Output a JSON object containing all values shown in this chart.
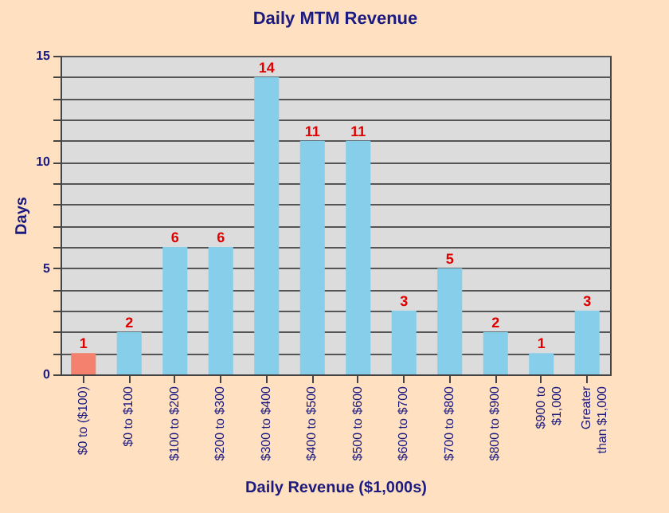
{
  "chart_data": {
    "type": "bar",
    "title": "Daily MTM Revenue",
    "xlabel": "Daily Revenue ($1,000s)",
    "ylabel": "Days",
    "categories": [
      "$0 to ($100)",
      "$0 to $100",
      "$100 to $200",
      "$200 to $300",
      "$300 to $400",
      "$400 to $500",
      "$500 to $600",
      "$600 to $700",
      "$700 to $800",
      "$800 to $900",
      "$900 to $1,000",
      "Greater than $1,000"
    ],
    "values": [
      1,
      2,
      6,
      6,
      14,
      11,
      11,
      3,
      5,
      2,
      1,
      3
    ],
    "colors": [
      "#f4806e",
      "#87ceeb",
      "#87ceeb",
      "#87ceeb",
      "#87ceeb",
      "#87ceeb",
      "#87ceeb",
      "#87ceeb",
      "#87ceeb",
      "#87ceeb",
      "#87ceeb",
      "#87ceeb"
    ],
    "ylim": [
      0,
      15
    ],
    "yticks": [
      0,
      {
        "value": 1,
        "label": null
      },
      {
        "value": 2,
        "label": null
      },
      {
        "value": 3,
        "label": null
      },
      {
        "value": 4,
        "label": null
      },
      5,
      {
        "value": 6,
        "label": null
      },
      {
        "value": 7,
        "label": null
      },
      {
        "value": 8,
        "label": null
      },
      {
        "value": 9,
        "label": null
      },
      10,
      {
        "value": 11,
        "label": null
      },
      {
        "value": 12,
        "label": null
      },
      {
        "value": 13,
        "label": null
      },
      {
        "value": 14,
        "label": null
      },
      15
    ],
    "grid": true,
    "data_labels": true
  }
}
